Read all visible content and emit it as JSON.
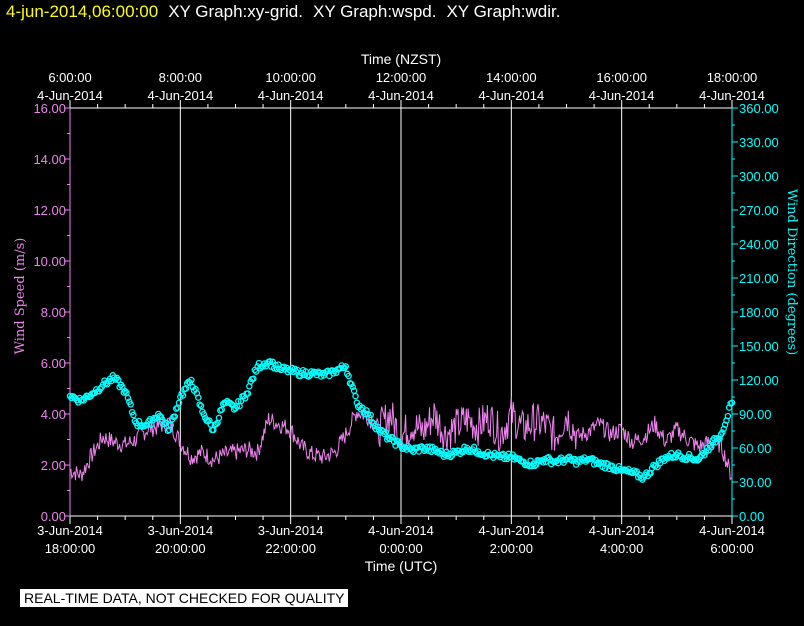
{
  "header": {
    "timestamp": "4-jun-2014,06:00:00",
    "titles": [
      "XY Graph:xy-grid.",
      "XY Graph:wspd.",
      "XY Graph:wdir."
    ]
  },
  "disclaimer": "REAL-TIME DATA, NOT CHECKED FOR QUALITY",
  "colors": {
    "background": "#000000",
    "grid": "#ffffff",
    "speed": "#ee82ee",
    "direction": "#00ffff",
    "timestamp": "#ffff00"
  },
  "chart_data": {
    "type": "line",
    "x_label_bottom": "Time (UTC)",
    "x_label_top": "Time (NZST)",
    "y_label_left": "Wind Speed (m/s)",
    "y_label_right": "Wind Direction (degrees)",
    "xlim_hours_utc": [
      18,
      30
    ],
    "bottom_ticks": [
      {
        "h": 18,
        "line1": "3-Jun-2014",
        "line2": "18:00:00"
      },
      {
        "h": 20,
        "line1": "3-Jun-2014",
        "line2": "20:00:00"
      },
      {
        "h": 22,
        "line1": "3-Jun-2014",
        "line2": "22:00:00"
      },
      {
        "h": 24,
        "line1": "4-Jun-2014",
        "line2": "0:00:00"
      },
      {
        "h": 26,
        "line1": "4-Jun-2014",
        "line2": "2:00:00"
      },
      {
        "h": 28,
        "line1": "4-Jun-2014",
        "line2": "4:00:00"
      },
      {
        "h": 30,
        "line1": "4-Jun-2014",
        "line2": "6:00:00"
      }
    ],
    "top_ticks": [
      {
        "h": 18,
        "line1": "6:00:00",
        "line2": "4-Jun-2014"
      },
      {
        "h": 20,
        "line1": "8:00:00",
        "line2": "4-Jun-2014"
      },
      {
        "h": 22,
        "line1": "10:00:00",
        "line2": "4-Jun-2014"
      },
      {
        "h": 24,
        "line1": "12:00:00",
        "line2": "4-Jun-2014"
      },
      {
        "h": 26,
        "line1": "14:00:00",
        "line2": "4-Jun-2014"
      },
      {
        "h": 28,
        "line1": "16:00:00",
        "line2": "4-Jun-2014"
      },
      {
        "h": 30,
        "line1": "18:00:00",
        "line2": "4-Jun-2014"
      }
    ],
    "ylim_left": [
      0,
      16
    ],
    "y_ticks_left": [
      "0.00",
      "2.00",
      "4.00",
      "6.00",
      "8.00",
      "10.00",
      "12.00",
      "14.00",
      "16.00"
    ],
    "ylim_right": [
      0,
      360
    ],
    "y_ticks_right": [
      "0.00",
      "30.00",
      "60.00",
      "90.00",
      "120.00",
      "150.00",
      "180.00",
      "210.00",
      "240.00",
      "270.00",
      "300.00",
      "330.00",
      "360.00"
    ],
    "grid": "vertical at major ticks",
    "series": [
      {
        "name": "Wind Speed (m/s)",
        "axis": "left",
        "style": "line",
        "x": [
          18.0,
          18.2,
          18.4,
          18.6,
          18.8,
          19.0,
          19.2,
          19.4,
          19.6,
          19.8,
          20.0,
          20.2,
          20.4,
          20.6,
          20.8,
          21.0,
          21.2,
          21.4,
          21.6,
          21.8,
          22.0,
          22.2,
          22.4,
          22.6,
          22.8,
          23.0,
          23.2,
          23.4,
          23.6,
          23.8,
          24.0,
          24.2,
          24.4,
          24.6,
          24.8,
          25.0,
          25.2,
          25.4,
          25.6,
          25.8,
          26.0,
          26.2,
          26.4,
          26.6,
          26.8,
          27.0,
          27.2,
          27.4,
          27.6,
          27.8,
          28.0,
          28.2,
          28.4,
          28.6,
          28.8,
          29.0,
          29.2,
          29.4,
          29.6,
          29.8,
          30.0
        ],
        "values": [
          1.8,
          1.6,
          2.4,
          3.1,
          2.9,
          2.8,
          3.0,
          3.4,
          3.5,
          3.7,
          2.9,
          2.3,
          2.5,
          2.2,
          2.4,
          2.5,
          2.6,
          2.5,
          3.8,
          3.6,
          3.4,
          2.7,
          2.4,
          2.3,
          2.5,
          3.2,
          4.1,
          3.9,
          3.4,
          4.0,
          3.1,
          3.6,
          3.3,
          4.0,
          3.2,
          3.5,
          3.8,
          3.5,
          3.9,
          3.2,
          4.0,
          3.4,
          3.7,
          3.6,
          3.1,
          4.0,
          3.1,
          3.3,
          3.6,
          3.2,
          3.4,
          2.9,
          3.1,
          3.6,
          2.9,
          3.4,
          3.0,
          2.7,
          2.9,
          2.8,
          1.5
        ]
      },
      {
        "name": "Wind Direction (degrees)",
        "axis": "right",
        "style": "markers",
        "x": [
          18.0,
          18.2,
          18.4,
          18.6,
          18.8,
          19.0,
          19.2,
          19.4,
          19.6,
          19.8,
          20.0,
          20.2,
          20.4,
          20.6,
          20.8,
          21.0,
          21.2,
          21.4,
          21.6,
          21.8,
          22.0,
          22.2,
          22.4,
          22.6,
          22.8,
          23.0,
          23.2,
          23.4,
          23.6,
          23.8,
          24.0,
          24.2,
          24.4,
          24.6,
          24.8,
          25.0,
          25.2,
          25.4,
          25.6,
          25.8,
          26.0,
          26.2,
          26.4,
          26.6,
          26.8,
          27.0,
          27.2,
          27.4,
          27.6,
          27.8,
          28.0,
          28.2,
          28.4,
          28.6,
          28.8,
          29.0,
          29.2,
          29.4,
          29.6,
          29.8,
          30.0
        ],
        "values": [
          106,
          102,
          108,
          116,
          122,
          110,
          82,
          80,
          90,
          76,
          105,
          120,
          92,
          76,
          100,
          95,
          108,
          132,
          136,
          130,
          128,
          126,
          126,
          124,
          128,
          132,
          100,
          90,
          76,
          68,
          62,
          58,
          60,
          58,
          54,
          56,
          60,
          57,
          54,
          52,
          52,
          48,
          46,
          50,
          48,
          50,
          48,
          50,
          46,
          44,
          40,
          38,
          34,
          44,
          52,
          54,
          52,
          50,
          62,
          72,
          100
        ]
      }
    ]
  }
}
